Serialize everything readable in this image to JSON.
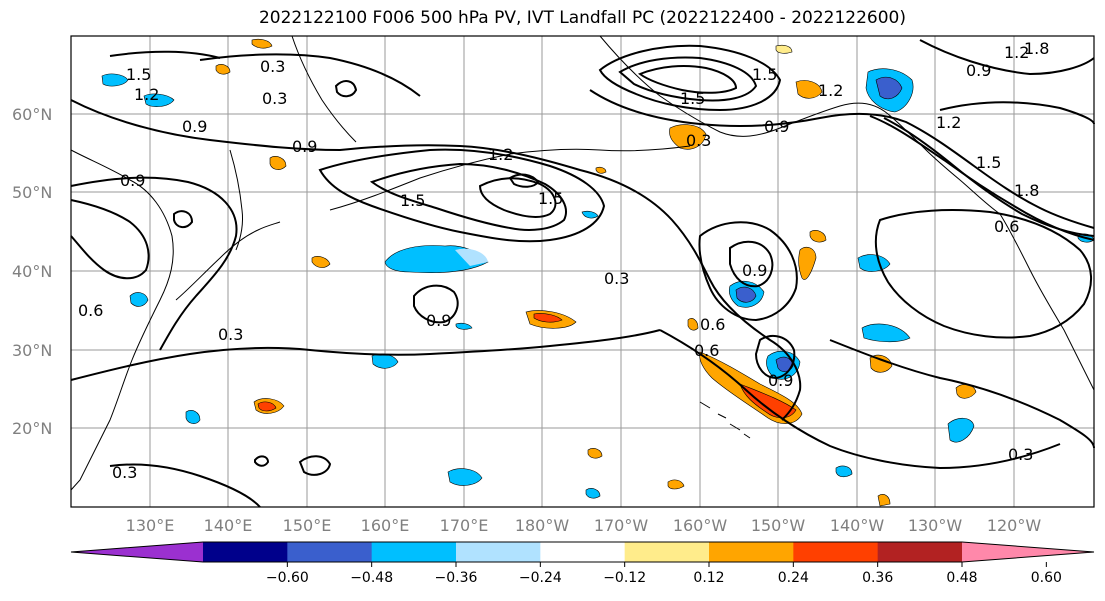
{
  "title": "2022122100 F006 500 hPa PV, IVT Landfall PC (2022122400 - 2022122600)",
  "lat_labels": [
    "60°N",
    "50°N",
    "40°N",
    "30°N",
    "20°N"
  ],
  "lon_labels": [
    "130°E",
    "140°E",
    "150°E",
    "160°E",
    "170°E",
    "180°W",
    "170°W",
    "160°W",
    "150°W",
    "140°W",
    "130°W",
    "120°W"
  ],
  "contour_labels": [
    "1.5",
    "1.2",
    "0.3",
    "0.3",
    "0.9",
    "0.9",
    "0.9",
    "1.2",
    "1.5",
    "1.5",
    "0.3",
    "0.9",
    "0.3",
    "0.9",
    "0.6",
    "0.6",
    "0.3",
    "0.9",
    "0.3",
    "1.2",
    "1.5",
    "1.8",
    "0.6",
    "1.5",
    "1.2",
    "1.8",
    "0.9",
    "0.3",
    "0.6",
    "1.2",
    "1.5",
    "0.9"
  ],
  "colorbar": {
    "ticks": [
      "−0.60",
      "−0.48",
      "−0.36",
      "−0.24",
      "−0.12",
      "0.12",
      "0.24",
      "0.36",
      "0.48",
      "0.60"
    ],
    "colors": [
      "#9b30d0",
      "#00008b",
      "#3a5fcd",
      "#00bfff",
      "#b0e2ff",
      "#ffffff",
      "#ffec8b",
      "#ffa500",
      "#ff4000",
      "#b22222",
      "#ff88aa"
    ]
  },
  "shading_colors": {
    "neg_light": "#b0e2ff",
    "neg_mid": "#00bfff",
    "neg_strong": "#3a5fcd",
    "pos_light": "#ffec8b",
    "pos_mid": "#ffa500",
    "pos_strong": "#ff4000"
  }
}
